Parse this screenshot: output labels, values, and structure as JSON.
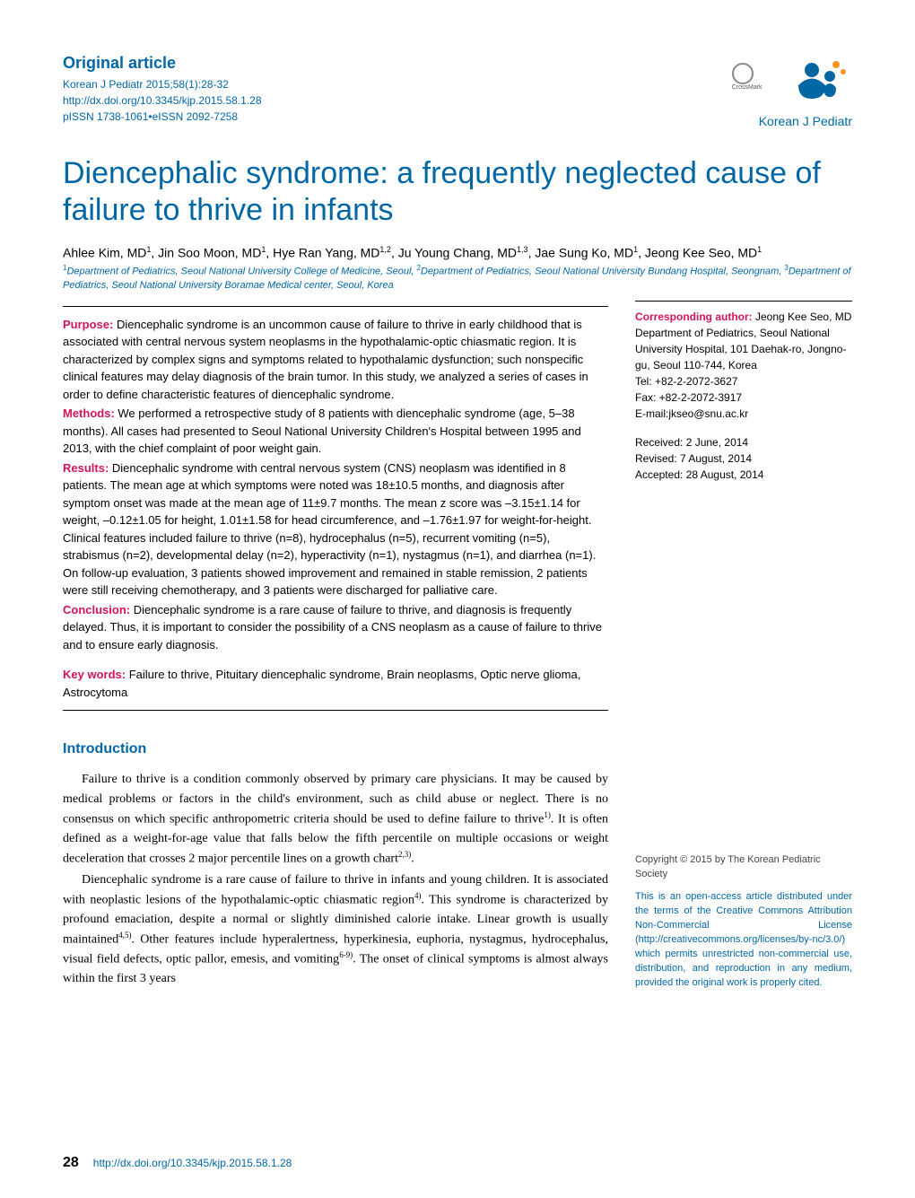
{
  "header": {
    "article_type": "Original article",
    "citation": "Korean J Pediatr 2015;58(1):28-32",
    "doi": "http://dx.doi.org/10.3345/kjp.2015.58.1.28",
    "issn": "pISSN 1738-1061•eISSN 2092-7258",
    "crossmark_label": "CrossMark",
    "journal_name": "Korean J Pediatr",
    "logo_colors": {
      "body": "#0066a4",
      "accent": "#f7941e"
    }
  },
  "title": "Diencephalic syndrome: a frequently neglected cause of failure to thrive in infants",
  "authors_html": "Ahlee Kim, MD<sup>1</sup>, Jin Soo Moon, MD<sup>1</sup>, Hye Ran Yang, MD<sup>1,2</sup>, Ju Young Chang, MD<sup>1,3</sup>, Jae Sung Ko, MD<sup>1</sup>, Jeong Kee Seo, MD<sup>1</sup>",
  "affiliations_html": "<sup>1</sup>Department of Pediatrics, Seoul National University College of Medicine, Seoul, <sup>2</sup>Department of Pediatrics, Seoul National University Bundang Hospital, Seongnam, <sup>3</sup>Department of Pediatrics, Seoul National University Boramae Medical center, Seoul, Korea",
  "abstract": {
    "purpose_label": "Purpose:",
    "purpose": " Diencephalic syndrome is an uncommon cause of failure to thrive in early childhood that is associated with central nervous system neoplasms in the hypothalamic-optic chiasmatic region. It is characterized by complex signs and symptoms related to hypothalamic dysfunction; such nonspecific clinical features may delay diagnosis of the brain tumor. In this study, we analyzed a series of cases in order to define characteristic features of diencephalic syndrome.",
    "methods_label": "Methods:",
    "methods": " We performed a retrospective study of 8 patients with diencephalic syndrome (age, 5–38 months). All cases had presented to Seoul National University Children's Hospital between 1995 and 2013, with the chief complaint of poor weight gain.",
    "results_label": "Results:",
    "results": " Diencephalic syndrome with central nervous system (CNS) neoplasm was identified in 8 patients. The mean age at which symptoms were noted was 18±10.5 months, and diagnosis after symptom onset was made at the mean age of 11±9.7 months. The mean z score was –3.15±1.14 for weight, –0.12±1.05 for height, 1.01±1.58 for head circumference, and –1.76±1.97 for weight-for-height. Clinical features included failure to thrive (n=8), hydrocephalus (n=5), recurrent vomiting (n=5), strabismus (n=2), developmental delay (n=2), hyperactivity (n=1), nystagmus (n=1), and diarrhea (n=1). On follow-up evaluation, 3 patients showed improvement and remained in stable remission, 2 patients were still receiving chemotherapy, and 3 patients were discharged for palliative care.",
    "conclusion_label": "Conclusion:",
    "conclusion": " Diencephalic syndrome is a rare cause of failure to thrive, and diagnosis is frequently delayed. Thus, it is important to consider the possibility of a CNS neoplasm as a cause of failure to thrive and to ensure early diagnosis.",
    "keywords_label": "Key words:",
    "keywords": " Failure to thrive, Pituitary diencephalic syndrome, Brain neoplasms, Optic nerve glioma, Astrocytoma"
  },
  "sidebar": {
    "corr_label": "Corresponding author:",
    "corr_name": " Jeong Kee Seo, MD",
    "corr_addr": "Department of Pediatrics, Seoul National University Hospital, 101 Daehak-ro, Jongno-gu, Seoul 110-744, Korea",
    "tel": "Tel: +82-2-2072-3627",
    "fax": "Fax: +82-2-2072-3917",
    "email": "E-mail:jkseo@snu.ac.kr",
    "received": "Received: 2 June, 2014",
    "revised": "Revised: 7 August, 2014",
    "accepted": "Accepted: 28 August, 2014"
  },
  "intro_heading": "Introduction",
  "intro_p1_html": "Failure to thrive is a condition commonly observed by primary care physicians. It may be caused by medical problems or factors in the child's environment, such as child abuse or neglect. There is no consensus on which specific anthropometric criteria should be used to define failure to thrive<sup>1)</sup>. It is often defined as a weight-for-age value that falls below the fifth percentile on multiple occasions or weight deceleration that crosses 2 major percentile lines on a growth chart<sup>2,3)</sup>.",
  "intro_p2_html": "Diencephalic syndrome is a rare cause of failure to thrive in infants and young children. It is associated with neoplastic lesions of the hypothalamic-optic chiasmatic region<sup>4)</sup>. This syndrome is characterized by profound emaciation, despite a normal or slightly diminished calorie intake. Linear growth is usually maintained<sup>4,5)</sup>. Other features include hyperalertness, hyperkinesia, euphoria, nystagmus, hydrocephalus, visual field defects, optic pallor, emesis, and vomiting<sup>6-9)</sup>. The onset of clinical symptoms is almost always within the first 3 years",
  "copyright": "Copyright © 2015 by The Korean Pediatric Society",
  "license": "This is an open-access article distributed under the terms of the Creative Commons Attribution Non-Commercial License (http://creativecommons.org/licenses/by-nc/3.0/) which permits unrestricted non-commercial use, distribution, and reproduction in any medium, provided the original work is properly cited.",
  "footer": {
    "page": "28",
    "doi": "http://dx.doi.org/10.3345/kjp.2015.58.1.28"
  },
  "colors": {
    "brand_blue": "#0066a4",
    "accent_pink": "#d4145a",
    "text_black": "#000000",
    "background": "#ffffff"
  }
}
